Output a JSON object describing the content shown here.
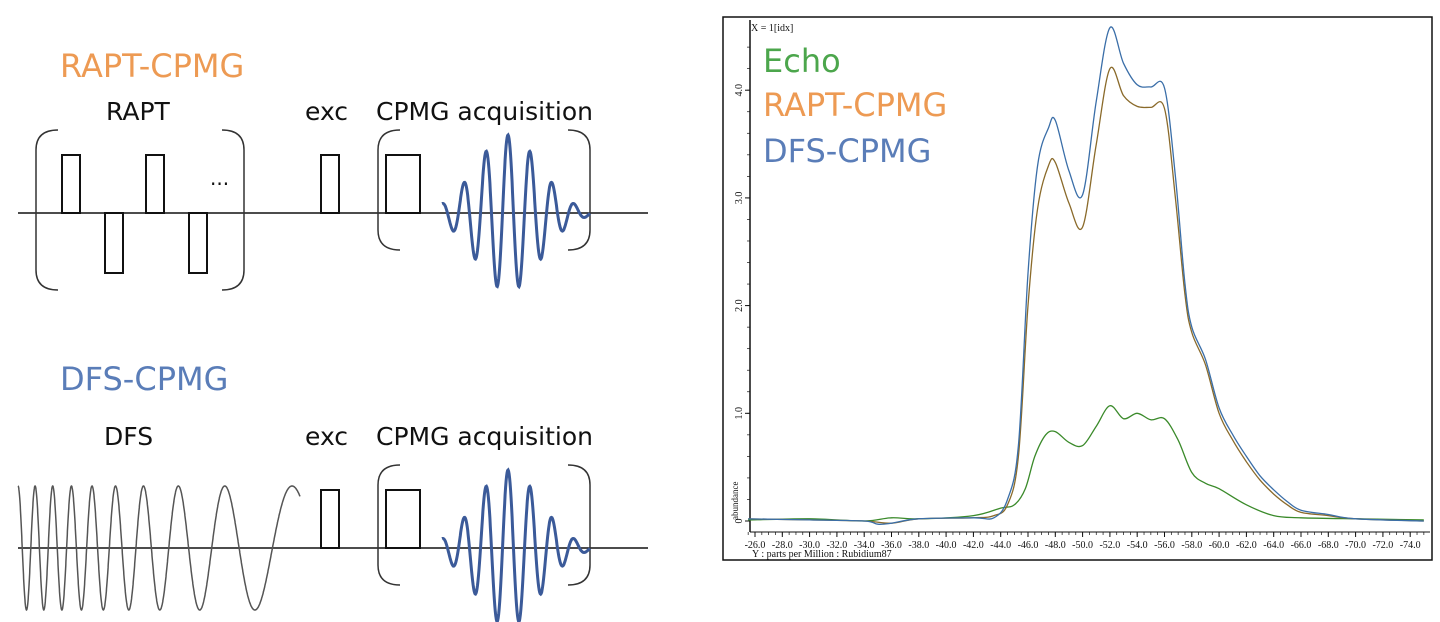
{
  "diagram": {
    "top": {
      "title": "RAPT-CPMG",
      "title_color": "#ED9A53",
      "block1": "RAPT",
      "dots": "...",
      "exc": "exc",
      "acq": "CPMG acquisition"
    },
    "bottom": {
      "title": "DFS-CPMG",
      "title_color": "#5A7DB8",
      "block1": "DFS",
      "exc": "exc",
      "acq": "CPMG acquisition"
    },
    "wave_color": "#3B5A99"
  },
  "chart_data": {
    "type": "line",
    "corner_label": "X = 1[idx]",
    "ylabel": "abundance",
    "xlabel": "Y : parts per Million : Rubidium87",
    "xlim": [
      -25.5,
      -75
    ],
    "ylim": [
      -0.2,
      4.7
    ],
    "x_ticks": [
      "-26.0",
      "-28.0",
      "-30.0",
      "-32.0",
      "-34.0",
      "-36.0",
      "-38.0",
      "-40.0",
      "-42.0",
      "-44.0",
      "-46.0",
      "-48.0",
      "-50.0",
      "-52.0",
      "-54.0",
      "-56.0",
      "-58.0",
      "-60.0",
      "-62.0",
      "-64.0",
      "-66.0",
      "-68.0",
      "-70.0",
      "-72.0",
      "-74.0"
    ],
    "y_ticks": [
      {
        "value": 0,
        "label": "0"
      },
      {
        "value": 1,
        "label": "1.0"
      },
      {
        "value": 2,
        "label": "2.0"
      },
      {
        "value": 3,
        "label": "3.0"
      },
      {
        "value": 4,
        "label": "4.0"
      }
    ],
    "legend": "top-left",
    "series": [
      {
        "name": "Echo",
        "color": "#4CA64C",
        "line_color": "#3A8A2A",
        "x": [
          -25.5,
          -30,
          -34,
          -36,
          -38,
          -42,
          -44,
          -45,
          -45.8,
          -46.5,
          -47.3,
          -48,
          -49,
          -50,
          -51,
          -52,
          -53,
          -54,
          -55,
          -56,
          -57,
          -58,
          -59,
          -60,
          -62,
          -64,
          -66,
          -70,
          -75
        ],
        "y": [
          0.01,
          0.02,
          0.0,
          0.03,
          0.02,
          0.05,
          0.12,
          0.15,
          0.3,
          0.6,
          0.8,
          0.83,
          0.73,
          0.7,
          0.88,
          1.07,
          0.95,
          1.0,
          0.94,
          0.95,
          0.75,
          0.45,
          0.35,
          0.3,
          0.15,
          0.05,
          0.03,
          0.02,
          0.01
        ]
      },
      {
        "name": "RAPT-CPMG",
        "color": "#ED9A53",
        "line_color": "#8A6A2A",
        "x": [
          -25.5,
          -30,
          -34,
          -36,
          -38,
          -42,
          -43.5,
          -44.5,
          -45.3,
          -46,
          -46.7,
          -47.5,
          -48,
          -49,
          -50,
          -51,
          -52,
          -53,
          -54,
          -55,
          -56,
          -56.8,
          -57.5,
          -58,
          -59,
          -60,
          -61,
          -62,
          -63,
          -64,
          -65,
          -66,
          -68,
          -70,
          -75
        ],
        "y": [
          0.02,
          0.01,
          0.0,
          -0.02,
          0.02,
          0.03,
          0.05,
          0.15,
          0.6,
          2.0,
          2.9,
          3.3,
          3.33,
          2.95,
          2.73,
          3.5,
          4.2,
          3.95,
          3.85,
          3.84,
          3.83,
          3.0,
          2.1,
          1.75,
          1.45,
          1.0,
          0.75,
          0.55,
          0.38,
          0.25,
          0.15,
          0.08,
          0.05,
          0.02,
          0.0
        ]
      },
      {
        "name": "DFS-CPMG",
        "color": "#5A7DB8",
        "line_color": "#3A6EA8",
        "x": [
          -25.5,
          -30,
          -34,
          -35,
          -36,
          -38,
          -42,
          -43.5,
          -44.5,
          -45.3,
          -46,
          -46.7,
          -47.5,
          -48,
          -49,
          -50,
          -51,
          -52,
          -53,
          -54,
          -55,
          -56,
          -56.8,
          -57.5,
          -58,
          -59,
          -60,
          -61,
          -62,
          -63,
          -64,
          -65,
          -66,
          -68,
          -70,
          -75
        ],
        "y": [
          0.02,
          0.01,
          0.0,
          -0.03,
          -0.02,
          0.02,
          0.03,
          0.03,
          0.2,
          0.7,
          2.3,
          3.3,
          3.65,
          3.72,
          3.25,
          3.03,
          3.9,
          4.58,
          4.25,
          4.05,
          4.03,
          4.02,
          3.2,
          2.2,
          1.8,
          1.5,
          1.05,
          0.8,
          0.6,
          0.42,
          0.29,
          0.18,
          0.1,
          0.06,
          0.02,
          0.0
        ]
      }
    ]
  }
}
